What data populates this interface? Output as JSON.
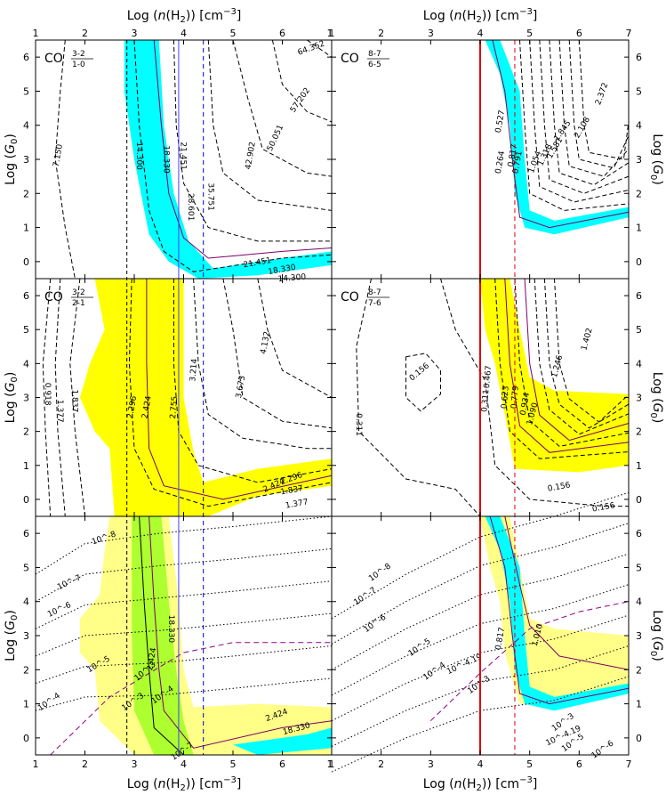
{
  "chart_data": {
    "type": "contour",
    "x_axis_label": "Log (n(H2)) [cm^-3]",
    "y_axis_label": "Log (G0)",
    "xlim": [
      1,
      7
    ],
    "ylim": [
      -0.5,
      6.5
    ],
    "x_ticks": [
      "1",
      "2",
      "3",
      "4",
      "5",
      "6",
      "7"
    ],
    "x_ticks_left_shared": [
      "1",
      "2",
      "3",
      "4",
      "5",
      "6",
      "1"
    ],
    "y_ticks": [
      "0",
      "1",
      "2",
      "3",
      "4",
      "5",
      "6"
    ],
    "panels": [
      {
        "id": "top-left",
        "title_species": "CO",
        "title_ratio": "3-2 / 1-0",
        "fill_color": "#00ffff",
        "contour_labels": [
          "7.150",
          "14.300",
          "18.330",
          "21.451",
          "28.601",
          "35.751",
          "42.902",
          "50.051",
          "57.202",
          "64.352",
          "21.451",
          "18.330",
          "14.300"
        ]
      },
      {
        "id": "top-right",
        "title_species": "CO",
        "title_ratio": "8-7 / 6-5",
        "fill_color": "#00ffff",
        "contour_labels": [
          "0.264",
          "0.527",
          "0.791",
          "0.817",
          "1.054",
          "1.318",
          "1.581",
          "1.845",
          "2.108",
          "2.372"
        ]
      },
      {
        "id": "middle-left",
        "title_species": "CO",
        "title_ratio": "3-2 / 2-1",
        "fill_color": "#ffff00",
        "contour_labels": [
          "0.918",
          "1.377",
          "1.837",
          "2.296",
          "2.424",
          "2.755",
          "3.214",
          "3.673",
          "4.132",
          "2.424",
          "2.296",
          "1.837",
          "1.377"
        ]
      },
      {
        "id": "middle-right",
        "title_species": "CO",
        "title_ratio": "8-7 / 7-6",
        "fill_color": "#ffff00",
        "contour_labels": [
          "0.156",
          "0.311",
          "0.311",
          "0.467",
          "0.623",
          "0.779",
          "0.934",
          "1.090",
          "1.246",
          "1.402",
          "0.156",
          "0.156"
        ]
      },
      {
        "id": "bottom-left",
        "overlap_color": "#adff2f",
        "contour_labels": [
          "10^-8",
          "10^-7",
          "10^-6",
          "10^-5",
          "10^-4",
          "10^-3",
          "10^-3",
          "10^-4",
          "10^-7",
          "2.424",
          "18.330",
          "2.424",
          "18.330"
        ]
      },
      {
        "id": "bottom-right",
        "contour_labels": [
          "10^-8",
          "10^-7",
          "10^-6",
          "10^-5",
          "10^-4",
          "10^-4.19",
          "10^-3",
          "0.817",
          "1.010",
          "10^-3",
          "10^-4.19",
          "10^-5",
          "10^-6"
        ]
      }
    ],
    "reference_lines": {
      "left_column": {
        "dashed_blue": 4.4,
        "solid_blue": 3.9,
        "dashed_black": 2.85
      },
      "right_column": {
        "solid_red": 4.0,
        "dashed_red": 4.7
      }
    }
  }
}
